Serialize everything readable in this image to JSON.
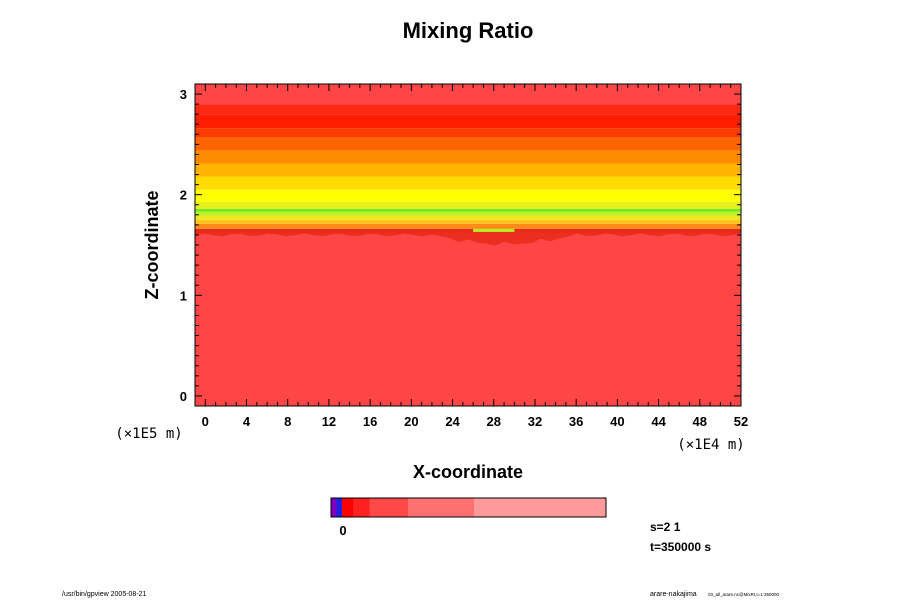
{
  "chart_data": {
    "type": "heatmap",
    "title": "Mixing Ratio",
    "xlabel": "X-coordinate",
    "ylabel": "Z-coordinate",
    "x_scale_label": "(×1E4 m)",
    "y_scale_label": "(×1E5 m)",
    "xlim": [
      -1,
      52
    ],
    "ylim": [
      -0.1,
      3.1
    ],
    "x_ticks": [
      0,
      4,
      8,
      12,
      16,
      20,
      24,
      28,
      32,
      36,
      40,
      44,
      48,
      52
    ],
    "y_ticks": [
      0,
      1,
      2,
      3
    ],
    "horizontal_bands": [
      {
        "z_from": -0.1,
        "z_to": 1.62,
        "color": "#ff4646"
      },
      {
        "z_from": 1.62,
        "z_to": 1.66,
        "color": "#e82a1a"
      },
      {
        "z_from": 1.66,
        "z_to": 1.71,
        "color": "#ff8a1a"
      },
      {
        "z_from": 1.71,
        "z_to": 1.75,
        "color": "#ffc21e"
      },
      {
        "z_from": 1.75,
        "z_to": 1.79,
        "color": "#f0e61e"
      },
      {
        "z_from": 1.79,
        "z_to": 1.83,
        "color": "#bff21e"
      },
      {
        "z_from": 1.83,
        "z_to": 1.86,
        "color": "#78e81e"
      },
      {
        "z_from": 1.86,
        "z_to": 1.93,
        "color": "#e6f21e"
      },
      {
        "z_from": 1.93,
        "z_to": 2.05,
        "color": "#ffff00"
      },
      {
        "z_from": 2.05,
        "z_to": 2.18,
        "color": "#ffdc00"
      },
      {
        "z_from": 2.18,
        "z_to": 2.31,
        "color": "#ffb400"
      },
      {
        "z_from": 2.31,
        "z_to": 2.44,
        "color": "#ff8c00"
      },
      {
        "z_from": 2.44,
        "z_to": 2.57,
        "color": "#ff6400"
      },
      {
        "z_from": 2.57,
        "z_to": 2.66,
        "color": "#ff3c00"
      },
      {
        "z_from": 2.66,
        "z_to": 2.8,
        "color": "#ff1e00"
      },
      {
        "z_from": 2.8,
        "z_to": 2.9,
        "color": "#ff2814"
      },
      {
        "z_from": 2.9,
        "z_to": 3.1,
        "color": "#ff4646"
      }
    ],
    "dip_region": {
      "x_from": 22,
      "x_to": 36,
      "z_min": 1.5,
      "color": "#e82a1a"
    },
    "colorbar": {
      "label": "0",
      "segments": [
        {
          "value": 0.0,
          "color": "#8000c0"
        },
        {
          "value": 0.02,
          "color": "#2020e0"
        },
        {
          "value": 0.04,
          "color": "#ff0000"
        },
        {
          "value": 0.08,
          "color": "#ff2020"
        },
        {
          "value": 0.14,
          "color": "#ff4848"
        },
        {
          "value": 0.28,
          "color": "#ff7070"
        },
        {
          "value": 0.52,
          "color": "#ff9a9a"
        }
      ]
    }
  },
  "info": {
    "s_label": "s=2 1",
    "t_label": "t=350000 s"
  },
  "footer": {
    "left": "/usr/bin/gpview 2005-08-21",
    "right_main": "arare-nakajima",
    "right_small": "03_all_arare.nc@MixRt,t=1:350000"
  }
}
